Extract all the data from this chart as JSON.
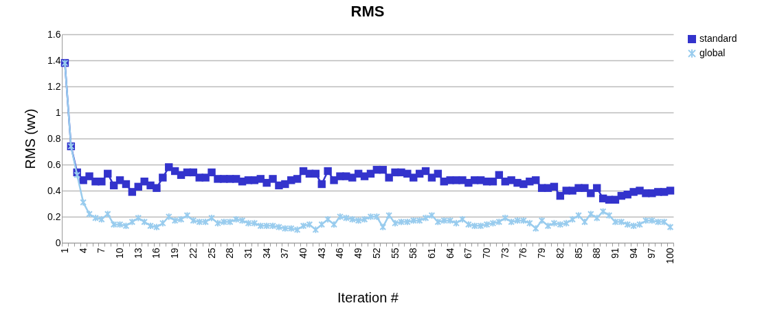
{
  "chart_data": {
    "type": "line",
    "title": "RMS",
    "xlabel": "Iteration #",
    "ylabel": "RMS (wv)",
    "categories": [
      "1",
      null,
      null,
      "4",
      null,
      null,
      "7",
      null,
      null,
      "10",
      null,
      null,
      "13",
      null,
      null,
      "16",
      null,
      null,
      "19",
      null,
      null,
      "22",
      null,
      null,
      "25",
      null,
      null,
      "28",
      null,
      null,
      "31",
      null,
      null,
      "34",
      null,
      null,
      "37",
      null,
      null,
      "40",
      null,
      null,
      "43",
      null,
      null,
      "46",
      null,
      null,
      "49",
      null,
      null,
      "52",
      null,
      null,
      "55",
      null,
      null,
      "58",
      null,
      null,
      "61",
      null,
      null,
      "64",
      null,
      null,
      "67",
      null,
      null,
      "70",
      null,
      null,
      "73",
      null,
      null,
      "76",
      null,
      null,
      "79",
      null,
      null,
      "82",
      null,
      null,
      "85",
      null,
      null,
      "88",
      null,
      null,
      "91",
      null,
      null,
      "94",
      null,
      null,
      "97",
      null,
      null,
      "100"
    ],
    "series": [
      {
        "name": "standard",
        "color": "#3333cc",
        "marker": "square",
        "values": [
          1.38,
          0.74,
          0.54,
          0.48,
          0.51,
          0.47,
          0.47,
          0.53,
          0.44,
          0.48,
          0.45,
          0.39,
          0.43,
          0.47,
          0.44,
          0.42,
          0.5,
          0.58,
          0.55,
          0.52,
          0.54,
          0.54,
          0.5,
          0.5,
          0.54,
          0.49,
          0.49,
          0.49,
          0.49,
          0.47,
          0.48,
          0.48,
          0.49,
          0.46,
          0.49,
          0.44,
          0.45,
          0.48,
          0.49,
          0.55,
          0.53,
          0.53,
          0.45,
          0.55,
          0.48,
          0.51,
          0.51,
          0.5,
          0.53,
          0.51,
          0.53,
          0.56,
          0.56,
          0.5,
          0.54,
          0.54,
          0.53,
          0.5,
          0.53,
          0.55,
          0.5,
          0.53,
          0.47,
          0.48,
          0.48,
          0.48,
          0.46,
          0.48,
          0.48,
          0.47,
          0.47,
          0.52,
          0.47,
          0.48,
          0.46,
          0.45,
          0.47,
          0.48,
          0.42,
          0.42,
          0.43,
          0.36,
          0.4,
          0.4,
          0.42,
          0.42,
          0.38,
          0.42,
          0.34,
          0.33,
          0.33,
          0.36,
          0.37,
          0.39,
          0.4,
          0.38,
          0.38,
          0.39,
          0.39,
          0.4
        ]
      },
      {
        "name": "global",
        "color": "#99ccee",
        "marker": "cross",
        "values": [
          1.38,
          0.74,
          0.52,
          0.31,
          0.22,
          0.19,
          0.18,
          0.22,
          0.14,
          0.14,
          0.13,
          0.16,
          0.19,
          0.16,
          0.13,
          0.12,
          0.15,
          0.2,
          0.17,
          0.18,
          0.21,
          0.17,
          0.16,
          0.16,
          0.19,
          0.15,
          0.16,
          0.16,
          0.18,
          0.17,
          0.15,
          0.15,
          0.13,
          0.13,
          0.13,
          0.12,
          0.11,
          0.11,
          0.1,
          0.13,
          0.14,
          0.1,
          0.14,
          0.18,
          0.14,
          0.2,
          0.19,
          0.18,
          0.17,
          0.18,
          0.2,
          0.2,
          0.12,
          0.21,
          0.15,
          0.16,
          0.16,
          0.17,
          0.17,
          0.19,
          0.21,
          0.16,
          0.17,
          0.17,
          0.15,
          0.18,
          0.14,
          0.13,
          0.13,
          0.14,
          0.15,
          0.16,
          0.19,
          0.16,
          0.17,
          0.17,
          0.15,
          0.11,
          0.17,
          0.13,
          0.15,
          0.14,
          0.15,
          0.18,
          0.21,
          0.16,
          0.22,
          0.19,
          0.24,
          0.21,
          0.16,
          0.16,
          0.14,
          0.13,
          0.14,
          0.17,
          0.17,
          0.16,
          0.16,
          0.12
        ]
      }
    ],
    "ylim": [
      0,
      1.6
    ],
    "yticks": [
      0,
      0.2,
      0.4,
      0.6,
      0.8,
      1,
      1.2,
      1.4,
      1.6
    ],
    "grid": "y",
    "legend": "right",
    "line_style": "solid"
  }
}
